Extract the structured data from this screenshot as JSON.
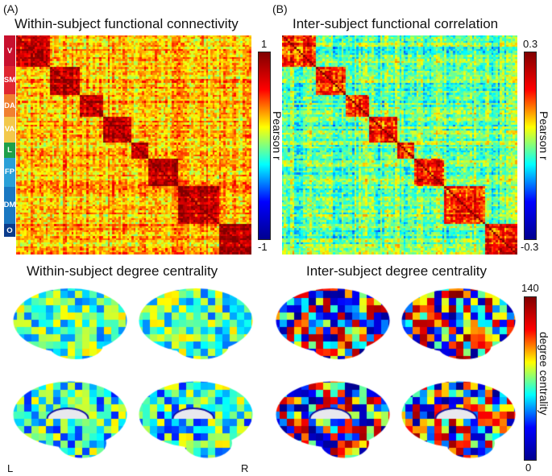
{
  "panels": {
    "A": {
      "label": "(A)",
      "title": "Within-subject functional connectivity",
      "colorbar": {
        "max": "1",
        "min": "-1",
        "label": "Pearson r"
      }
    },
    "B": {
      "label": "(B)",
      "title": "Inter-subject functional correlation",
      "colorbar": {
        "max": "0.3",
        "min": "-0.3",
        "label": "Pearson r"
      }
    }
  },
  "networks": [
    {
      "label": "V",
      "color": "#c8102e"
    },
    {
      "label": "SM",
      "color": "#e02630"
    },
    {
      "label": "DA",
      "color": "#f08030"
    },
    {
      "label": "VA",
      "color": "#f2c84b"
    },
    {
      "label": "L",
      "color": "#1ea04a"
    },
    {
      "label": "FP",
      "color": "#2aa0d8"
    },
    {
      "label": "DM",
      "color": "#1a78c2"
    },
    {
      "label": "O",
      "color": "#0b3c8c"
    }
  ],
  "degree": {
    "within_title": "Within-subject degree centrality",
    "inter_title": "Inter-subject degree centrality",
    "colorbar": {
      "max": "140",
      "min": "0",
      "label": "degree centrality"
    },
    "left_label": "L",
    "right_label": "R"
  },
  "colors": {
    "jet": [
      "#00008f",
      "#0000ff",
      "#00ffff",
      "#ffff00",
      "#ff0000",
      "#800000"
    ]
  }
}
